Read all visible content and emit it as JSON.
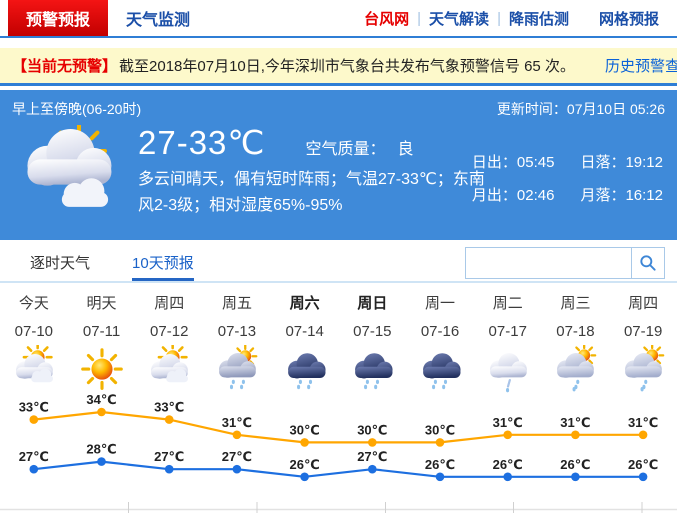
{
  "nav": {
    "tabs": [
      {
        "label": "预警预报",
        "active": true
      },
      {
        "label": "天气监测",
        "active": false
      }
    ],
    "links": [
      {
        "label": "台风网",
        "red": true,
        "sep": true
      },
      {
        "label": "天气解读",
        "red": false,
        "sep": true
      },
      {
        "label": "降雨估测",
        "red": false,
        "sep": false
      },
      {
        "label": "网格预报",
        "red": false,
        "sep": false
      }
    ]
  },
  "alert": {
    "badge": "【当前无预警】",
    "text": "截至2018年07月10日,今年深圳市气象台共发布气象预警信号 65 次。",
    "link": "历史预警查询"
  },
  "panel": {
    "title": "早上至傍晚(06-20时)",
    "update_label": "更新时间：",
    "update_time": "07月10日 05:26",
    "icon": "sun-two-clouds",
    "temp_range": "27-33℃",
    "air_quality_label": "空气质量：",
    "air_quality": "良",
    "description": "多云间晴天，偶有短时阵雨；气温27-33℃；东南风2-3级；相对湿度65%-95%",
    "sun_moon": [
      {
        "label": "日出：",
        "value": "05:45"
      },
      {
        "label": "日落：",
        "value": "19:12"
      },
      {
        "label": "月出：",
        "value": "02:46"
      },
      {
        "label": "月落：",
        "value": "16:12"
      }
    ]
  },
  "tabs": [
    {
      "label": "逐时天气",
      "active": false
    },
    {
      "label": "10天预报",
      "active": true
    }
  ],
  "search": {
    "value": "",
    "icon": "magnifier-icon"
  },
  "forecast": {
    "days": [
      {
        "label": "今天",
        "date": "07-10",
        "icon": "sun-cloud",
        "bold": false
      },
      {
        "label": "明天",
        "date": "07-11",
        "icon": "sunny",
        "bold": false
      },
      {
        "label": "周四",
        "date": "07-12",
        "icon": "sun-cloud",
        "bold": false
      },
      {
        "label": "周五",
        "date": "07-13",
        "icon": "cloud-sun-drizzle",
        "bold": false
      },
      {
        "label": "周六",
        "date": "07-14",
        "icon": "rain-dark",
        "bold": true
      },
      {
        "label": "周日",
        "date": "07-15",
        "icon": "rain-dark",
        "bold": true
      },
      {
        "label": "周一",
        "date": "07-16",
        "icon": "rain-dark",
        "bold": false
      },
      {
        "label": "周二",
        "date": "07-17",
        "icon": "cloud-light-rain",
        "bold": false
      },
      {
        "label": "周三",
        "date": "07-18",
        "icon": "sun-cloud-rain",
        "bold": false
      },
      {
        "label": "周四",
        "date": "07-19",
        "icon": "sun-cloud-rain",
        "bold": false
      }
    ]
  },
  "chart_data": {
    "type": "line",
    "categories": [
      "07-10",
      "07-11",
      "07-12",
      "07-13",
      "07-14",
      "07-15",
      "07-16",
      "07-17",
      "07-18",
      "07-19"
    ],
    "unit": "℃",
    "legend": "none",
    "series": [
      {
        "name": "high-temp",
        "color": "#ffa600",
        "values": [
          33,
          34,
          33,
          31,
          30,
          30,
          30,
          31,
          31,
          31
        ]
      },
      {
        "name": "low-temp",
        "color": "#1d6fe0",
        "values": [
          27,
          28,
          27,
          27,
          26,
          27,
          26,
          26,
          26,
          26
        ]
      }
    ],
    "ylim": [
      24,
      36
    ]
  },
  "colors": {
    "accent_red": "#e60000",
    "nav_blue": "#1b4fa8",
    "panel_blue": "#3f8ad9",
    "link_blue": "#0b62d8",
    "tab_active_blue": "#1a62c8",
    "alert_bg": "#fdf9cb",
    "high_line": "#ffa600",
    "low_line": "#1d6fe0"
  }
}
